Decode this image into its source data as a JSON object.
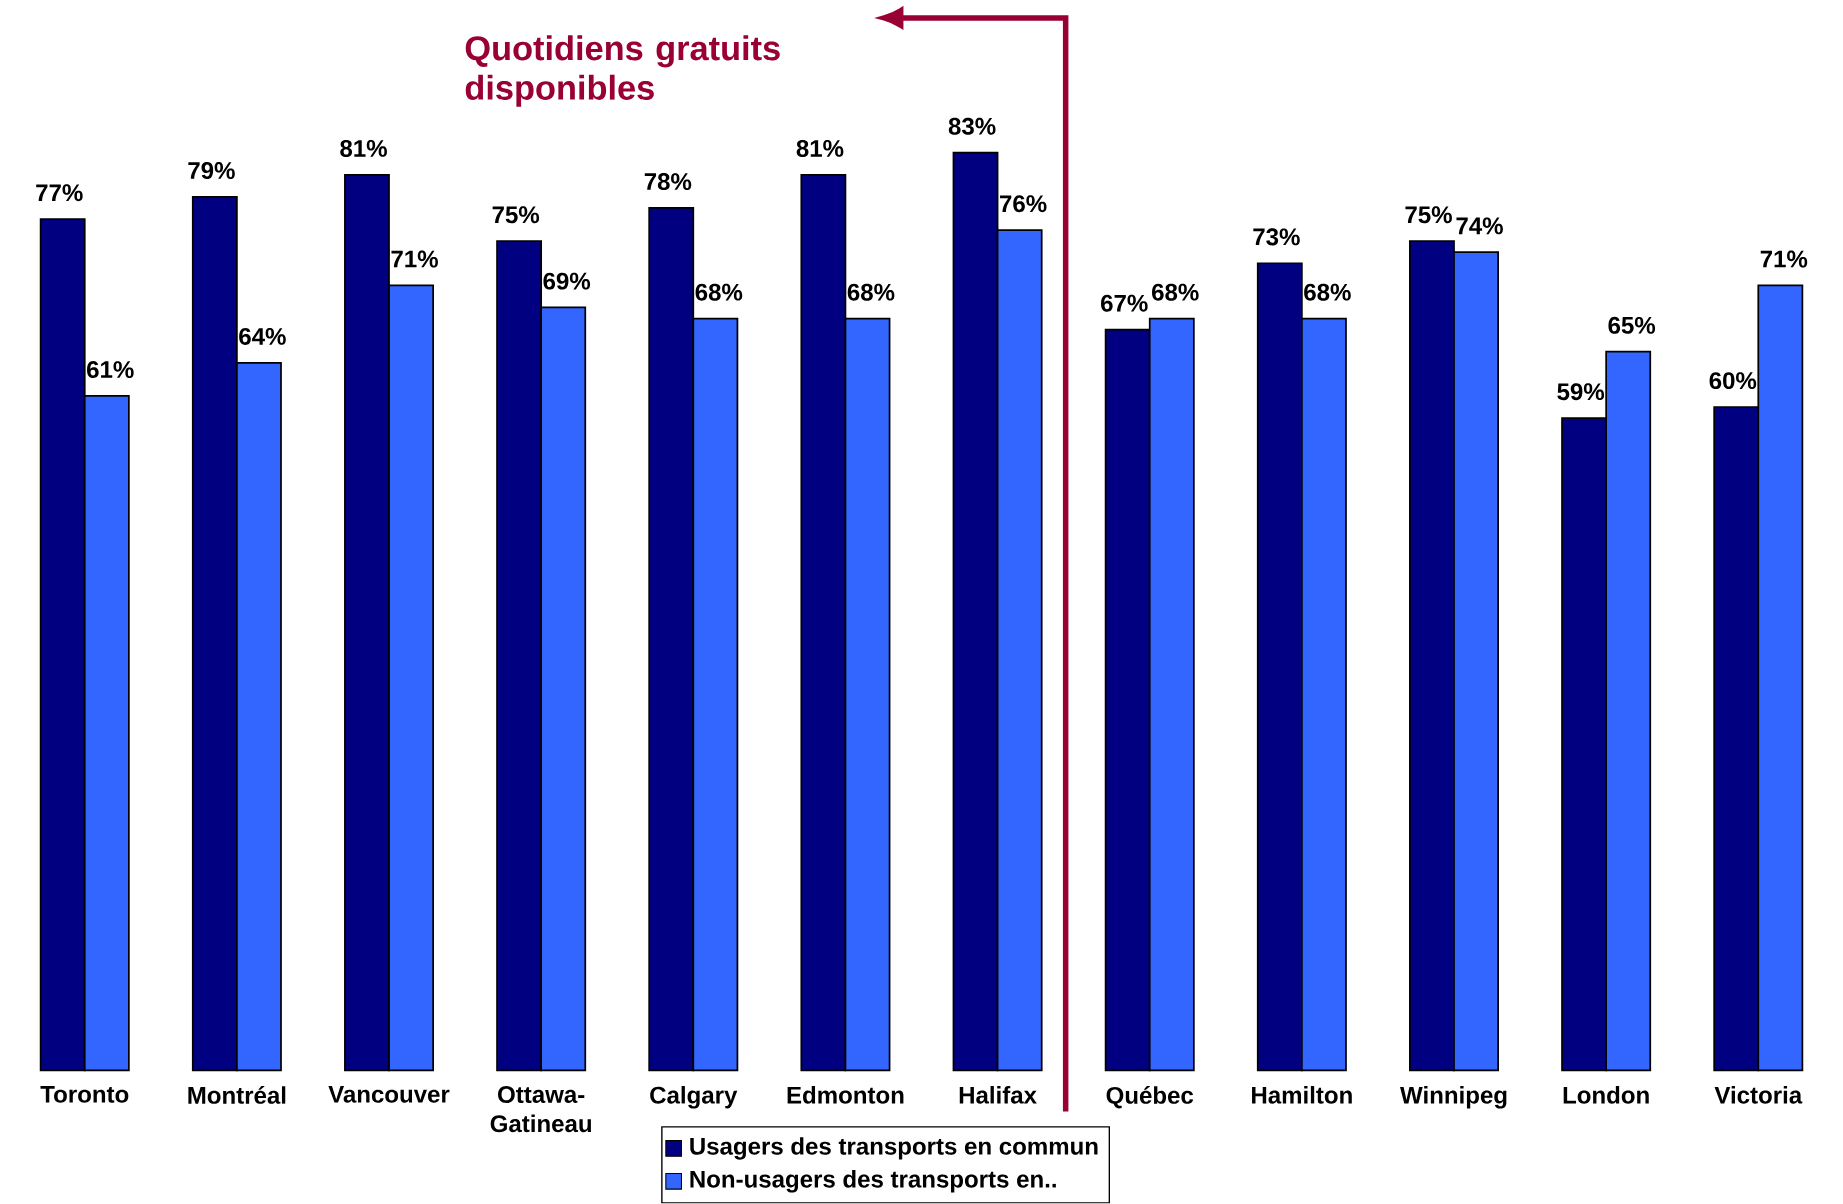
{
  "chart_data": {
    "type": "bar",
    "annotations": [
      "Quotidiens gratuits disponibles"
    ],
    "categories": [
      "Toronto",
      "Montréal",
      "Vancouver",
      "Ottawa-Gatineau",
      "Calgary",
      "Edmonton",
      "Halifax",
      "Québec",
      "Hamilton",
      "Winnipeg",
      "London",
      "Victoria"
    ],
    "series": [
      {
        "name": "Usagers des transports en commun",
        "color": "#000080",
        "values": [
          77,
          79,
          81,
          75,
          78,
          81,
          83,
          67,
          73,
          75,
          59,
          60
        ],
        "value_labels": [
          "77%",
          "79%",
          "81%",
          "75%",
          "78%",
          "81%",
          "83%",
          "67%",
          "73%",
          "75%",
          "59%",
          "60%"
        ]
      },
      {
        "name": "Non-usagers des transports en..",
        "color": "#3366ff",
        "values": [
          61,
          64,
          71,
          69,
          68,
          68,
          76,
          68,
          68,
          74,
          65,
          71
        ],
        "value_labels": [
          "61%",
          "64%",
          "71%",
          "69%",
          "68%",
          "68%",
          "76%",
          "68%",
          "68%",
          "74%",
          "65%",
          "71%"
        ]
      }
    ],
    "legend": "bottom"
  }
}
